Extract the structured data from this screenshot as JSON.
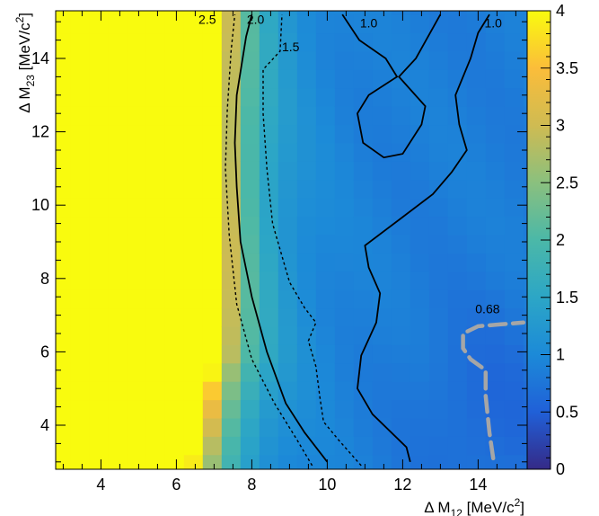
{
  "chart_data": {
    "type": "heatmap",
    "title": "",
    "xlabel": {
      "prefix": "Δ M",
      "sub": "12",
      "unit_main": " [MeV/c",
      "unit_sup": "2",
      "unit_end": "]"
    },
    "ylabel": {
      "prefix": "Δ M",
      "sub": "23",
      "unit_main": " [MeV/c",
      "unit_sup": "2",
      "unit_end": "]"
    },
    "xlim": [
      2.8,
      15.3
    ],
    "ylim": [
      2.8,
      15.3
    ],
    "x_ticks": [
      4,
      6,
      8,
      10,
      12,
      14
    ],
    "y_ticks": [
      4,
      6,
      8,
      10,
      12,
      14
    ],
    "z_range": [
      0,
      4
    ],
    "z_ticks": [
      "0",
      "0.5",
      "1",
      "1.5",
      "2",
      "2.5",
      "3",
      "3.5",
      "4"
    ],
    "colorscale": [
      "#352a87",
      "#2060d8",
      "#1c8ad8",
      "#2ca6c6",
      "#4bb8a8",
      "#8ac07e",
      "#cfbb52",
      "#fbbd3a",
      "#f9fb0e"
    ],
    "grid": false,
    "contours": [
      {
        "level": "2.5",
        "label": "2.5",
        "style": "dashed",
        "color": "#000000",
        "points": [
          [
            9.6,
            2.9
          ],
          [
            9.2,
            3.6
          ],
          [
            8.6,
            4.6
          ],
          [
            8.0,
            5.8
          ],
          [
            7.6,
            7.3
          ],
          [
            7.4,
            9.2
          ],
          [
            7.3,
            11.0
          ],
          [
            7.35,
            12.6
          ],
          [
            7.45,
            14.2
          ],
          [
            7.55,
            15.2
          ]
        ]
      },
      {
        "level": "2.0",
        "label": "2.0",
        "style": "solid",
        "color": "#000000",
        "points": [
          [
            10.0,
            3.0
          ],
          [
            9.4,
            3.8
          ],
          [
            8.9,
            4.6
          ],
          [
            8.4,
            6.0
          ],
          [
            8.0,
            7.5
          ],
          [
            7.7,
            9.0
          ],
          [
            7.6,
            10.5
          ],
          [
            7.55,
            11.7
          ],
          [
            7.6,
            13.0
          ],
          [
            7.85,
            14.6
          ],
          [
            8.0,
            15.2
          ]
        ]
      },
      {
        "level": "1.5",
        "label": "1.5",
        "style": "dashed",
        "color": "#000000",
        "points": [
          [
            10.9,
            2.9
          ],
          [
            10.3,
            3.6
          ],
          [
            9.9,
            4.1
          ],
          [
            9.8,
            4.8
          ],
          [
            9.7,
            5.6
          ],
          [
            9.5,
            6.3
          ],
          [
            9.7,
            6.8
          ],
          [
            9.4,
            7.2
          ],
          [
            9.0,
            7.9
          ],
          [
            8.55,
            9.5
          ],
          [
            8.4,
            11.0
          ],
          [
            8.3,
            12.5
          ],
          [
            8.3,
            13.7
          ],
          [
            8.75,
            14.2
          ],
          [
            8.8,
            15.2
          ]
        ]
      },
      {
        "level": "1.0",
        "label": "1.0",
        "style": "solid",
        "color": "#000000",
        "points": [
          [
            12.2,
            3.0
          ],
          [
            12.1,
            3.4
          ],
          [
            11.2,
            4.3
          ],
          [
            10.8,
            5.0
          ],
          [
            10.9,
            5.9
          ],
          [
            11.3,
            6.8
          ],
          [
            11.4,
            7.6
          ],
          [
            11.1,
            8.3
          ],
          [
            11.0,
            8.9
          ],
          [
            11.9,
            9.6
          ],
          [
            12.8,
            10.3
          ],
          [
            13.3,
            10.9
          ],
          [
            13.7,
            11.5
          ],
          [
            13.5,
            12.2
          ],
          [
            13.4,
            13.0
          ],
          [
            13.8,
            14.0
          ],
          [
            14.0,
            14.7
          ],
          [
            14.3,
            15.2
          ]
        ]
      },
      {
        "level": "1.0",
        "label": "1.0",
        "style": "solid",
        "color": "#000000",
        "points": [
          [
            10.4,
            15.2
          ],
          [
            10.85,
            14.5
          ],
          [
            11.55,
            14.0
          ],
          [
            11.85,
            13.5
          ],
          [
            11.1,
            13.0
          ],
          [
            10.8,
            12.5
          ],
          [
            10.95,
            11.7
          ],
          [
            11.5,
            11.3
          ],
          [
            12.0,
            11.4
          ],
          [
            12.5,
            12.2
          ],
          [
            12.6,
            12.7
          ],
          [
            11.9,
            13.5
          ],
          [
            12.35,
            14.0
          ],
          [
            13.0,
            15.2
          ]
        ]
      },
      {
        "level": "0.68",
        "label": "0.68",
        "style": "long-dash",
        "color": "#a6a6a6",
        "points": [
          [
            14.4,
            3.1
          ],
          [
            14.3,
            3.8
          ],
          [
            14.2,
            4.8
          ],
          [
            14.2,
            5.5
          ],
          [
            13.8,
            5.8
          ],
          [
            13.6,
            6.1
          ],
          [
            13.6,
            6.5
          ],
          [
            14.0,
            6.7
          ],
          [
            14.6,
            6.75
          ],
          [
            15.2,
            6.8
          ]
        ]
      }
    ]
  }
}
